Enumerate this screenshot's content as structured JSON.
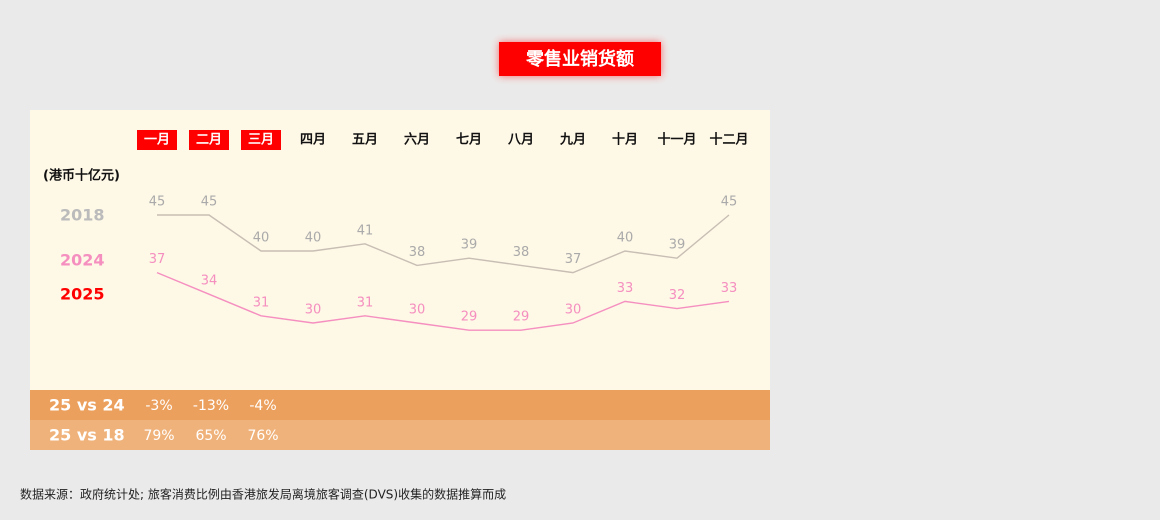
{
  "chart_data": {
    "type": "line",
    "title": "零售业销货额",
    "y_unit": "(港币十亿元)",
    "categories": [
      "一月",
      "二月",
      "三月",
      "四月",
      "五月",
      "六月",
      "七月",
      "八月",
      "九月",
      "十月",
      "十一月",
      "十二月"
    ],
    "series": [
      {
        "name": "2018",
        "color": "#c8beb4",
        "label_color": "#aaaaaa",
        "values": [
          45,
          45,
          40,
          40,
          41,
          38,
          39,
          38,
          37,
          40,
          39,
          45
        ]
      },
      {
        "name": "2024",
        "color": "#f58fc0",
        "label_color": "#f58fc0",
        "values": [
          37,
          34,
          31,
          30,
          31,
          30,
          29,
          29,
          30,
          33,
          32,
          33
        ]
      },
      {
        "name": "2025",
        "color": "#ff0000",
        "label_color": "#ff0000",
        "values": [
          null,
          null,
          null,
          null,
          null,
          null,
          null,
          null,
          null,
          null,
          null,
          null
        ]
      }
    ],
    "ylim": [
      20,
      50
    ],
    "comparisons": [
      {
        "label": "25 vs 24",
        "values": [
          -3,
          -13,
          -4
        ],
        "value_labels": [
          "-3%",
          "-13%",
          "-4%"
        ],
        "color": "#eca05e"
      },
      {
        "label": "25 vs 18",
        "values": [
          79,
          65,
          76
        ],
        "value_labels": [
          "79%",
          "65%",
          "76%"
        ],
        "color": "#f0b27b"
      }
    ],
    "source": "数据来源：政府统计处; 旅客消费比例由香港旅发局离境旅客调查(DVS)收集的数据推算而成"
  }
}
